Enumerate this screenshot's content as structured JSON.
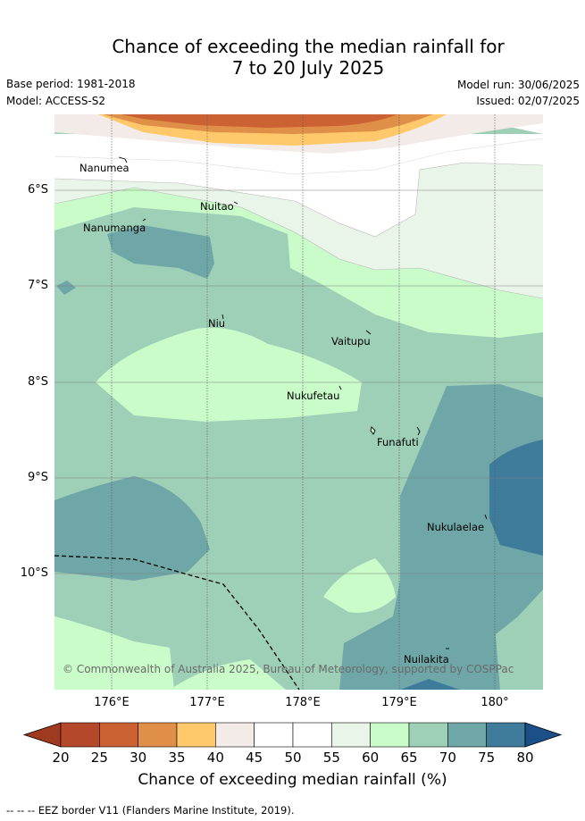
{
  "title_line1": "Chance of exceeding the median rainfall for",
  "title_line2": "7 to 20 July 2025",
  "base_period": "Base period: 1981-2018",
  "model": "Model: ACCESS-S2",
  "model_run": "Model run: 30/06/2025",
  "issued": "Issued: 02/07/2025",
  "lat_labels": [
    "6°S",
    "7°S",
    "8°S",
    "9°S",
    "10°S"
  ],
  "lon_labels": [
    "176°E",
    "177°E",
    "178°E",
    "179°E",
    "180°"
  ],
  "places": {
    "nanumea": "Nanumea",
    "nuitao": "Nuitao",
    "nanumanga": "Nanumanga",
    "niu": "Niu",
    "vaitupu": "Vaitupu",
    "nukufetau": "Nukufetau",
    "funafuti": "Funafuti",
    "nukulaelae": "Nukulaelae",
    "nuilakita": "Nuilakita"
  },
  "copyright": "© Commonwealth of Australia 2025, Bureau of Meteorology, supported by COSPPac",
  "colorbar": {
    "ticks": [
      "20",
      "25",
      "30",
      "35",
      "40",
      "45",
      "50",
      "55",
      "60",
      "65",
      "70",
      "75",
      "80"
    ],
    "colors": [
      "#a03a1e",
      "#b5472a",
      "#cc6233",
      "#e08f48",
      "#ffc96b",
      "#f2ebe8",
      "#ffffff",
      "#ffffff",
      "#eaf5ea",
      "#c9fcc9",
      "#9ecfb7",
      "#6fa6a8",
      "#3f7b9a",
      "#1a4f88"
    ],
    "label": "Chance of exceeding median rainfall (%)"
  },
  "footnote": "-- -- -- EEZ border V11 (Flanders Marine Institute, 2019)."
}
